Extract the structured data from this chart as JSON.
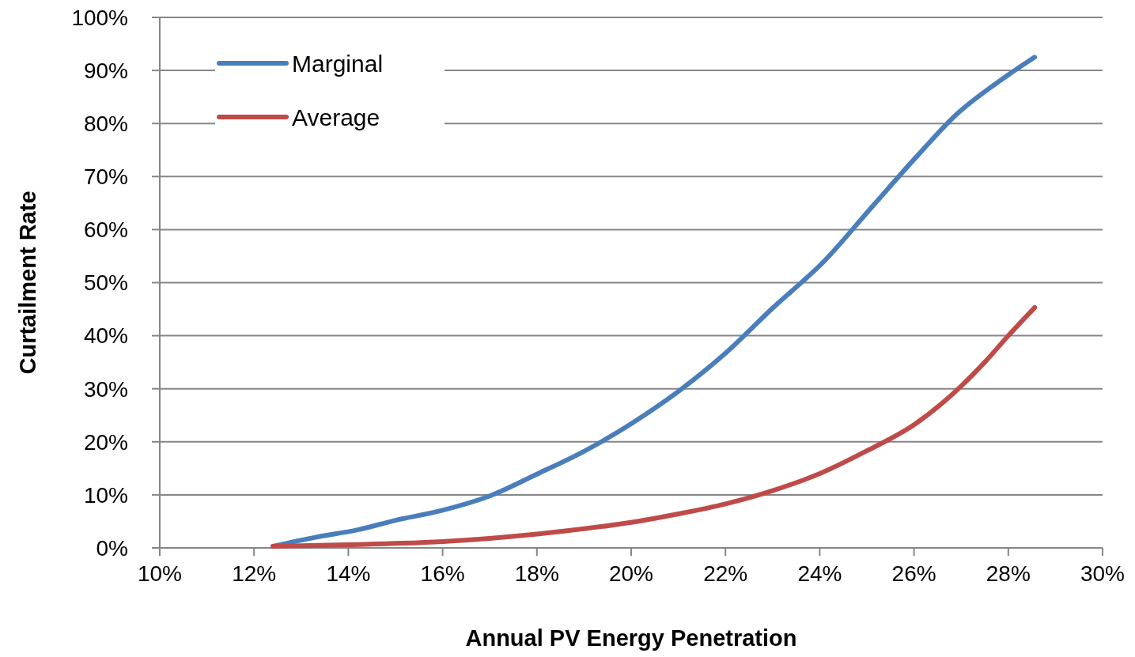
{
  "chart_data": {
    "type": "line",
    "xlabel": "Annual PV Energy Penetration",
    "ylabel": "Curtailment Rate",
    "xlim": [
      10,
      30
    ],
    "ylim": [
      0,
      100
    ],
    "xticks": [
      {
        "value": 10,
        "label": "10%"
      },
      {
        "value": 12,
        "label": "12%"
      },
      {
        "value": 14,
        "label": "14%"
      },
      {
        "value": 16,
        "label": "16%"
      },
      {
        "value": 18,
        "label": "18%"
      },
      {
        "value": 20,
        "label": "20%"
      },
      {
        "value": 22,
        "label": "22%"
      },
      {
        "value": 24,
        "label": "24%"
      },
      {
        "value": 26,
        "label": "26%"
      },
      {
        "value": 28,
        "label": "28%"
      },
      {
        "value": 30,
        "label": "30%"
      }
    ],
    "yticks": [
      {
        "value": 0,
        "label": "0%"
      },
      {
        "value": 10,
        "label": "10%"
      },
      {
        "value": 20,
        "label": "20%"
      },
      {
        "value": 30,
        "label": "30%"
      },
      {
        "value": 40,
        "label": "40%"
      },
      {
        "value": 50,
        "label": "50%"
      },
      {
        "value": 60,
        "label": "60%"
      },
      {
        "value": 70,
        "label": "70%"
      },
      {
        "value": 80,
        "label": "80%"
      },
      {
        "value": 90,
        "label": "90%"
      },
      {
        "value": 100,
        "label": "100%"
      }
    ],
    "grid": "y",
    "legend": "top left",
    "marker": "none",
    "line_style": "solid",
    "series": [
      {
        "name": "Marginal",
        "color": "#4a7ebb",
        "x": [
          12.4,
          13.3,
          14.2,
          15.0,
          16.0,
          17.0,
          18.0,
          19.0,
          20.0,
          21.0,
          22.0,
          23.0,
          24.1,
          25.1,
          26.1,
          26.9,
          27.75,
          28.56
        ],
        "values": [
          0.3,
          2,
          3.4,
          5.2,
          7.1,
          9.8,
          13.9,
          18.2,
          23.4,
          29.5,
          36.7,
          45.2,
          54.1,
          64.2,
          74.2,
          81.7,
          87.6,
          92.5
        ]
      },
      {
        "name": "Average",
        "color": "#be4b48",
        "x": [
          12.4,
          14,
          16,
          17,
          18,
          19,
          20,
          21,
          22,
          23,
          24,
          25,
          26,
          27,
          27.5,
          28,
          28.56
        ],
        "values": [
          0.3,
          0.6,
          1.2,
          1.8,
          2.6,
          3.6,
          4.8,
          6.4,
          8.3,
          10.8,
          14.0,
          18.3,
          23.2,
          30.5,
          35,
          40,
          45.3
        ]
      }
    ]
  }
}
